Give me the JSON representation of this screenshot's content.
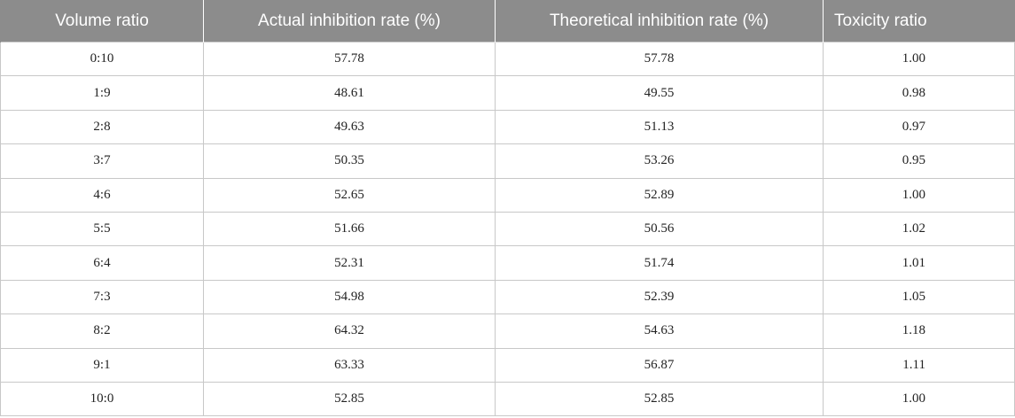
{
  "table": {
    "headers": [
      "Volume ratio",
      "Actual inhibition rate (%)",
      "Theoretical inhibition rate (%)",
      "Toxicity ratio"
    ],
    "rows": [
      [
        "0:10",
        "57.78",
        "57.78",
        "1.00"
      ],
      [
        "1:9",
        "48.61",
        "49.55",
        "0.98"
      ],
      [
        "2:8",
        "49.63",
        "51.13",
        "0.97"
      ],
      [
        "3:7",
        "50.35",
        "53.26",
        "0.95"
      ],
      [
        "4:6",
        "52.65",
        "52.89",
        "1.00"
      ],
      [
        "5:5",
        "51.66",
        "50.56",
        "1.02"
      ],
      [
        "6:4",
        "52.31",
        "51.74",
        "1.01"
      ],
      [
        "7:3",
        "54.98",
        "52.39",
        "1.05"
      ],
      [
        "8:2",
        "64.32",
        "54.63",
        "1.18"
      ],
      [
        "9:1",
        "63.33",
        "56.87",
        "1.11"
      ],
      [
        "10:0",
        "52.85",
        "52.85",
        "1.00"
      ]
    ]
  }
}
